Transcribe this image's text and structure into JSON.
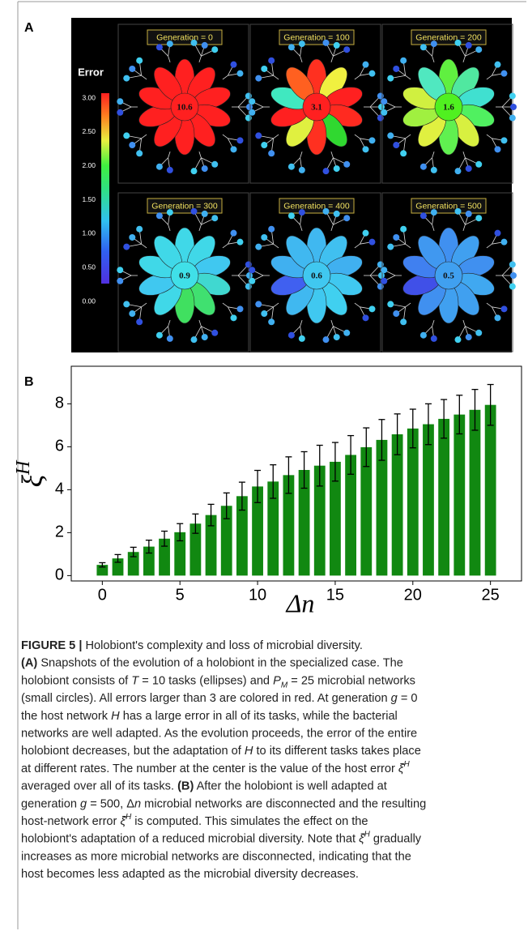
{
  "panel_a": {
    "label": "A",
    "colorbar_title": "Error",
    "colorbar_lim": [
      0,
      3
    ],
    "colorbar_ticks": [
      {
        "value": 3,
        "label": "3.00"
      },
      {
        "value": 2.5,
        "label": "2.50"
      },
      {
        "value": 2,
        "label": "2.00"
      },
      {
        "value": 1.5,
        "label": "1.50"
      },
      {
        "value": 1,
        "label": "1.00"
      },
      {
        "value": 0.5,
        "label": "0.50"
      },
      {
        "value": 0,
        "label": "0.00"
      }
    ],
    "panels": [
      {
        "title": "Generation = 0",
        "center_value": 10.6,
        "color": "#ff2020",
        "petal_colors": [
          "#ff2020",
          "#ff2020",
          "#ff2020",
          "#ff2020",
          "#ff2020",
          "#ff2020",
          "#ff2020",
          "#ff2020",
          "#ff2020",
          "#ff2020"
        ]
      },
      {
        "title": "Generation = 100",
        "center_value": 3.1,
        "color": "#ff2020",
        "petal_colors": [
          "#ff3020",
          "#f0f040",
          "#ff2020",
          "#ff2a20",
          "#30d830",
          "#ff3020",
          "#e0f040",
          "#ff2020",
          "#40e8c0",
          "#ff6020"
        ]
      },
      {
        "title": "Generation = 200",
        "center_value": 1.6,
        "color": "#50f020",
        "petal_colors": [
          "#60f040",
          "#50e8a0",
          "#40e0d0",
          "#50f060",
          "#d8f040",
          "#60f050",
          "#e0f040",
          "#a0f040",
          "#d0f040",
          "#50e8c0"
        ]
      },
      {
        "title": "Generation = 300",
        "center_value": 0.9,
        "color": "#40e0e8",
        "petal_colors": [
          "#40d8e8",
          "#40d8e8",
          "#40c8f0",
          "#40d8d0",
          "#40e070",
          "#40e060",
          "#40d8e8",
          "#40c8f0",
          "#40d8e8",
          "#40d8e8"
        ]
      },
      {
        "title": "Generation = 400",
        "center_value": 0.6,
        "color": "#40c8f0",
        "petal_colors": [
          "#40b8f0",
          "#40c0f0",
          "#40b0f0",
          "#40c8f0",
          "#40d0f0",
          "#40c8f0",
          "#40b8f0",
          "#4060f0",
          "#40b0f0",
          "#40b8f0"
        ]
      },
      {
        "title": "Generation = 500",
        "center_value": 0.5,
        "color": "#40a0f0",
        "petal_colors": [
          "#4090f0",
          "#40a0f0",
          "#4090f0",
          "#40a8f0",
          "#40a0f0",
          "#40a0f0",
          "#4090f0",
          "#4050e8",
          "#4080f0",
          "#4098f0"
        ]
      }
    ]
  },
  "chart_data": {
    "type": "bar",
    "label": "B",
    "xlabel": "Δn",
    "ylabel": "ξ",
    "ylabel_sup": "H",
    "x": [
      0,
      1,
      2,
      3,
      4,
      5,
      6,
      7,
      8,
      9,
      10,
      11,
      12,
      13,
      14,
      15,
      16,
      17,
      18,
      19,
      20,
      21,
      22,
      23,
      24,
      25
    ],
    "values": [
      0.5,
      0.8,
      1.1,
      1.35,
      1.72,
      2.02,
      2.42,
      2.82,
      3.25,
      3.7,
      4.15,
      4.38,
      4.68,
      4.92,
      5.12,
      5.3,
      5.62,
      5.98,
      6.32,
      6.58,
      6.85,
      7.05,
      7.3,
      7.5,
      7.72,
      7.95
    ],
    "errors": [
      0.1,
      0.18,
      0.22,
      0.3,
      0.35,
      0.4,
      0.45,
      0.5,
      0.6,
      0.65,
      0.75,
      0.78,
      0.85,
      0.85,
      0.95,
      0.9,
      0.9,
      0.9,
      0.95,
      0.95,
      0.9,
      0.95,
      0.9,
      0.9,
      0.95,
      0.95
    ],
    "color": "#118811",
    "xlim": [
      -2,
      27
    ],
    "ylim": [
      -0.25,
      9.75
    ],
    "xticks": [
      0,
      5,
      10,
      15,
      20,
      25
    ],
    "yticks": [
      0,
      2,
      4,
      6,
      8
    ]
  },
  "caption": {
    "lines": [
      [
        {
          "text": "FIGURE 5 |",
          "bold": true
        },
        {
          "text": " Holobiont's complexity and loss of microbial diversity."
        }
      ],
      [
        {
          "text": "(A)",
          "bold": true
        },
        {
          "text": " Snapshots of the evolution of a holobiont in the specialized case. The"
        }
      ],
      [
        {
          "text": "holobiont consists of "
        },
        {
          "text": "T",
          "italic": true
        },
        {
          "text": " = 10 tasks (ellipses) and "
        },
        {
          "text": "P",
          "italic": true
        },
        {
          "text": "M",
          "italic": true,
          "sub": true
        },
        {
          "text": " = 25 microbial networks"
        }
      ],
      [
        {
          "text": "(small circles). All errors larger than 3 are colored in red. At generation "
        },
        {
          "text": "g",
          "italic": true
        },
        {
          "text": " = 0"
        }
      ],
      [
        {
          "text": "the host network "
        },
        {
          "text": "H",
          "italic": true
        },
        {
          "text": " has a large error in all of its tasks, while the bacterial"
        }
      ],
      [
        {
          "text": "networks are well adapted. As the evolution proceeds, the error of the entire"
        }
      ],
      [
        {
          "text": "holobiont decreases, but the adaptation of "
        },
        {
          "text": "H",
          "italic": true
        },
        {
          "text": " to its different tasks takes place"
        }
      ],
      [
        {
          "text": "at different rates. The number at the center is the value of the host error "
        },
        {
          "text": "ξ̄",
          "italic": true
        },
        {
          "text": "H",
          "italic": true,
          "sup": true
        }
      ],
      [
        {
          "text": "averaged over all of its tasks. "
        },
        {
          "text": "(B)",
          "bold": true
        },
        {
          "text": " After the holobiont is well adapted at"
        }
      ],
      [
        {
          "text": "generation "
        },
        {
          "text": "g",
          "italic": true
        },
        {
          "text": " = 500, Δ"
        },
        {
          "text": "n",
          "italic": true
        },
        {
          "text": " microbial networks are disconnected and the resulting"
        }
      ],
      [
        {
          "text": "host-network error "
        },
        {
          "text": "ξ̄",
          "italic": true
        },
        {
          "text": "H",
          "italic": true,
          "sup": true
        },
        {
          "text": " is computed. This simulates the effect on the"
        }
      ],
      [
        {
          "text": "holobiont's adaptation of a reduced microbial diversity. Note that "
        },
        {
          "text": "ξ̄",
          "italic": true
        },
        {
          "text": "H",
          "italic": true,
          "sup": true
        },
        {
          "text": " gradually"
        }
      ],
      [
        {
          "text": "increases as more microbial networks are disconnected, indicating that the"
        }
      ],
      [
        {
          "text": "host becomes less adapted as the microbial diversity decreases."
        }
      ]
    ]
  }
}
